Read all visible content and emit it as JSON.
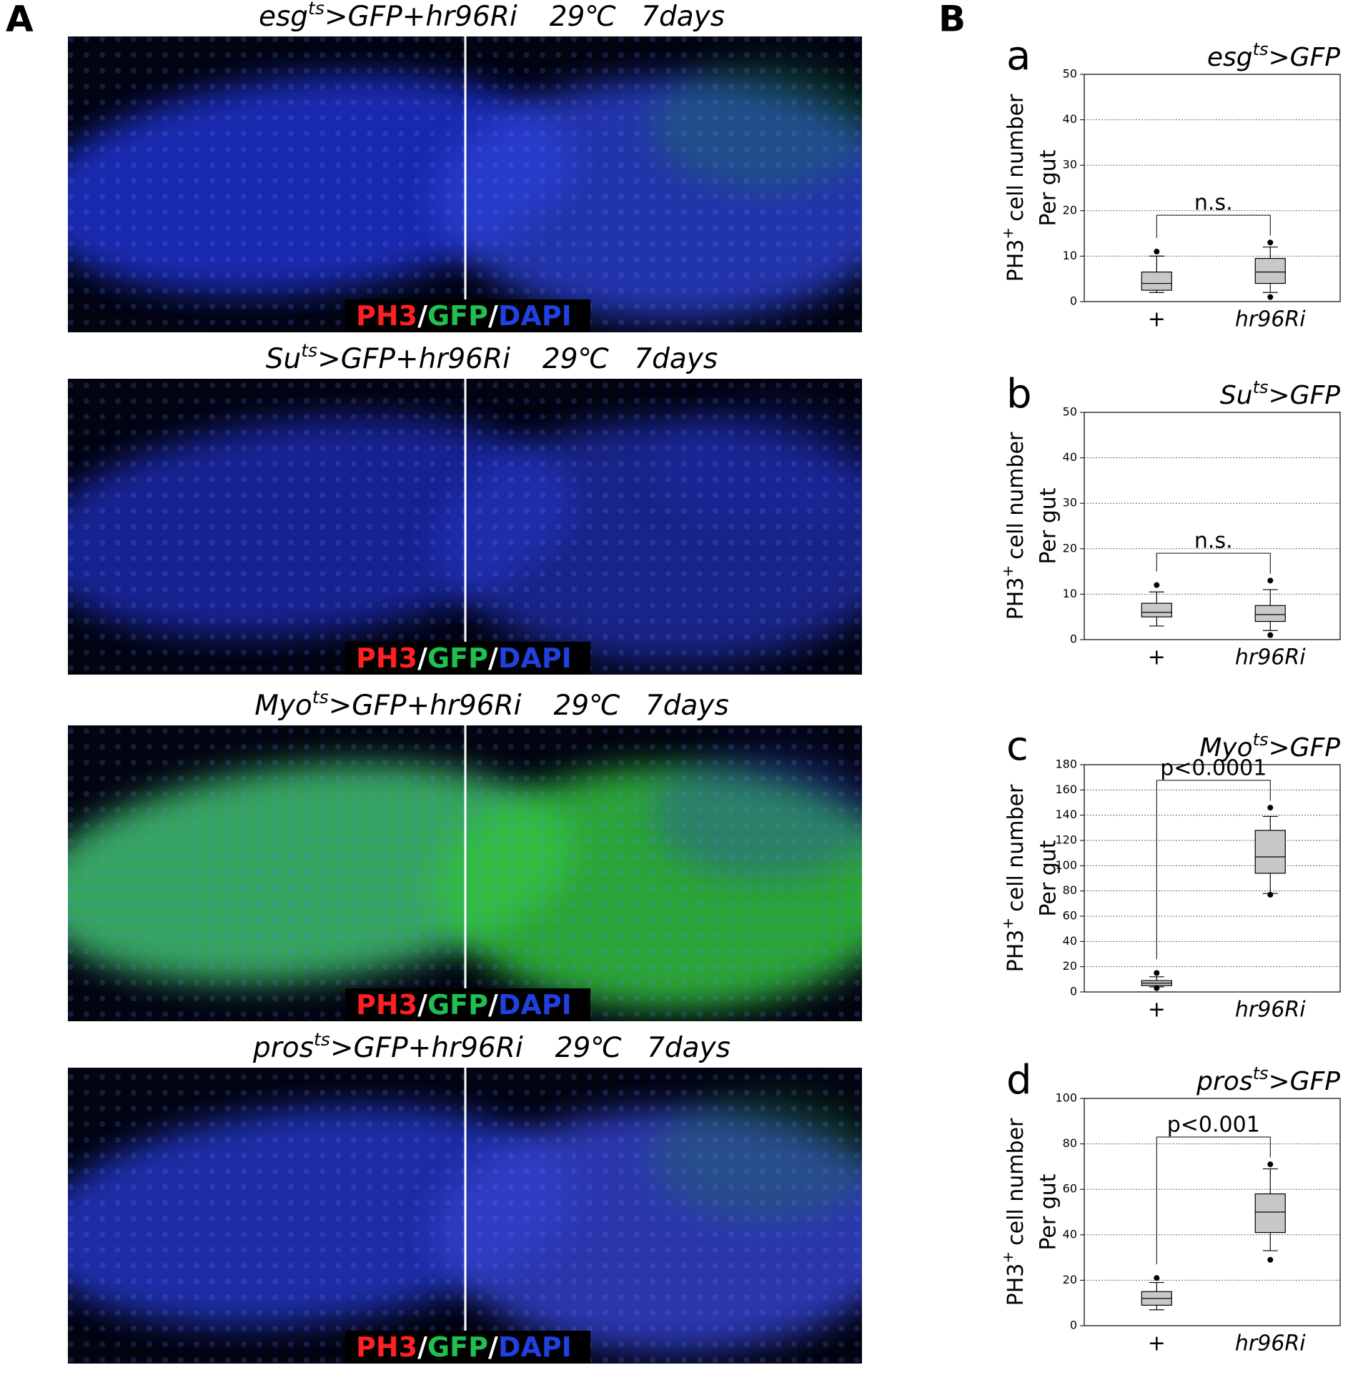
{
  "panel_a": {
    "label": "A",
    "images": [
      {
        "genotype": "esg",
        "superscript": "ts",
        "construct": ">GFP+hr96Ri",
        "temperature": "29℃",
        "duration": "7days"
      },
      {
        "genotype": "Su",
        "superscript": "ts",
        "construct": ">GFP+hr96Ri",
        "temperature": "29℃",
        "duration": "7days"
      },
      {
        "genotype": "Myo",
        "superscript": "ts",
        "construct": ">GFP+hr96Ri",
        "temperature": "29℃",
        "duration": "7days"
      },
      {
        "genotype": "pros",
        "superscript": "ts",
        "construct": ">GFP+hr96Ri",
        "temperature": "29℃",
        "duration": "7days"
      }
    ],
    "stain": {
      "labels": [
        "PH3",
        "GFP",
        "DAPI"
      ],
      "colors": [
        "#ff2020",
        "#20c050",
        "#2040e0"
      ],
      "separator": "/"
    }
  },
  "panel_b": {
    "label": "B"
  },
  "chart_data": [
    {
      "type": "box",
      "panel_label": "a",
      "title": {
        "genotype": "esg",
        "superscript": "ts",
        "construct": ">GFP"
      },
      "y_label": {
        "text": "PH3",
        "superscript": "+",
        "rest": "cell number",
        "line2": "Per gut"
      },
      "categories": [
        "+",
        "hr96Ri"
      ],
      "color": "#c8c8c8",
      "boxes": [
        {
          "min": 2,
          "q1": 2.5,
          "median": 4,
          "q3": 6.5,
          "max": 10,
          "outliers": [
            11
          ]
        },
        {
          "min": 2,
          "q1": 4,
          "median": 6.5,
          "q3": 9.5,
          "max": 12,
          "outliers": [
            1,
            13
          ]
        }
      ],
      "ylim": [
        0,
        50
      ],
      "yticks": [
        0,
        10,
        20,
        30,
        40,
        50
      ],
      "grid": true,
      "annotation": "n.s."
    },
    {
      "type": "box",
      "panel_label": "b",
      "title": {
        "genotype": "Su",
        "superscript": "ts",
        "construct": ">GFP"
      },
      "y_label": {
        "text": "PH3",
        "superscript": "+",
        "rest": "cell number",
        "line2": "Per gut"
      },
      "categories": [
        "+",
        "hr96Ri"
      ],
      "color": "#c8c8c8",
      "boxes": [
        {
          "min": 3,
          "q1": 5,
          "median": 6,
          "q3": 8,
          "max": 10.5,
          "outliers": [
            12
          ]
        },
        {
          "min": 2,
          "q1": 4,
          "median": 5.5,
          "q3": 7.5,
          "max": 11,
          "outliers": [
            1,
            13
          ]
        }
      ],
      "ylim": [
        0,
        50
      ],
      "yticks": [
        0,
        10,
        20,
        30,
        40,
        50
      ],
      "grid": true,
      "annotation": "n.s."
    },
    {
      "type": "box",
      "panel_label": "c",
      "title": {
        "genotype": "Myo",
        "superscript": "ts",
        "construct": ">GFP"
      },
      "y_label": {
        "text": "PH3",
        "superscript": "+",
        "rest": "cell number",
        "line2": "Per gut"
      },
      "categories": [
        "+",
        "hr96Ri"
      ],
      "color": "#c8c8c8",
      "boxes": [
        {
          "min": 4,
          "q1": 5,
          "median": 7,
          "q3": 9,
          "max": 12,
          "outliers": [
            3,
            15
          ]
        },
        {
          "min": 78,
          "q1": 94,
          "median": 107,
          "q3": 128,
          "max": 139,
          "outliers": [
            77,
            146
          ]
        }
      ],
      "ylim": [
        0,
        180
      ],
      "yticks": [
        0,
        20,
        40,
        60,
        80,
        100,
        120,
        140,
        160,
        180
      ],
      "grid": true,
      "annotation": "p<0.0001"
    },
    {
      "type": "box",
      "panel_label": "d",
      "title": {
        "genotype": "pros",
        "superscript": "ts",
        "construct": ">GFP"
      },
      "y_label": {
        "text": "PH3",
        "superscript": "+",
        "rest": "cell number",
        "line2": "Per gut"
      },
      "categories": [
        "+",
        "hr96Ri"
      ],
      "color": "#c8c8c8",
      "boxes": [
        {
          "min": 7,
          "q1": 9,
          "median": 12,
          "q3": 15,
          "max": 19,
          "outliers": [
            21
          ]
        },
        {
          "min": 33,
          "q1": 41,
          "median": 50,
          "q3": 58,
          "max": 69,
          "outliers": [
            29,
            71
          ]
        }
      ],
      "ylim": [
        0,
        100
      ],
      "yticks": [
        0,
        20,
        40,
        60,
        80,
        100
      ],
      "grid": true,
      "annotation": "p<0.001"
    }
  ]
}
